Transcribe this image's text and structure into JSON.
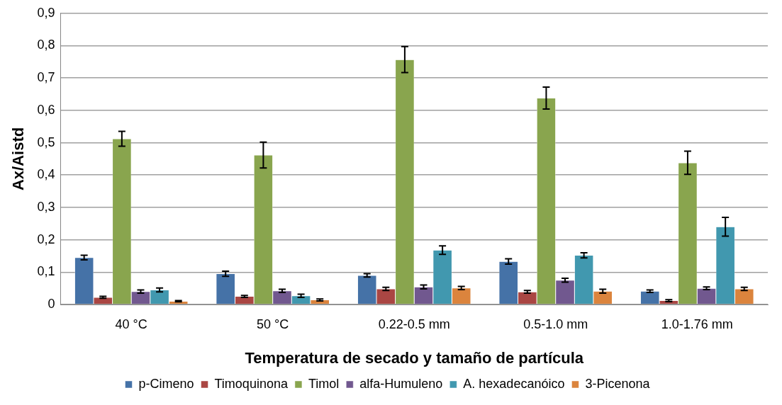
{
  "chart_data": {
    "type": "bar",
    "xlabel": "Temperatura de secado y tamaño de partícula",
    "ylabel": "Ax/Aistd",
    "categories": [
      "40 °C",
      "50 °C",
      "0.22-0.5 mm",
      "0.5-1.0 mm",
      "1.0-1.76 mm"
    ],
    "series": [
      {
        "name": "p-Cimeno",
        "color": "#4572a7",
        "values": [
          0.145,
          0.095,
          0.09,
          0.133,
          0.041
        ],
        "errors": [
          0.007,
          0.008,
          0.005,
          0.008,
          0.004
        ]
      },
      {
        "name": "Timoquinona",
        "color": "#aa4643",
        "values": [
          0.022,
          0.025,
          0.048,
          0.039,
          0.012
        ],
        "errors": [
          0.003,
          0.003,
          0.005,
          0.004,
          0.003
        ]
      },
      {
        "name": "Timol",
        "color": "#89a54e",
        "values": [
          0.512,
          0.462,
          0.757,
          0.638,
          0.438
        ],
        "errors": [
          0.023,
          0.04,
          0.04,
          0.034,
          0.036
        ]
      },
      {
        "name": "alfa-Humuleno",
        "color": "#71588f",
        "values": [
          0.04,
          0.042,
          0.054,
          0.075,
          0.05
        ],
        "errors": [
          0.005,
          0.005,
          0.006,
          0.006,
          0.004
        ]
      },
      {
        "name": "A. hexadecanóico",
        "color": "#4198af",
        "values": [
          0.045,
          0.027,
          0.168,
          0.152,
          0.24
        ],
        "errors": [
          0.006,
          0.005,
          0.013,
          0.008,
          0.029
        ]
      },
      {
        "name": "3-Picenona",
        "color": "#db843d",
        "values": [
          0.01,
          0.014,
          0.051,
          0.041,
          0.048
        ],
        "errors": [
          0.002,
          0.003,
          0.005,
          0.006,
          0.005
        ]
      }
    ],
    "ylim": [
      0,
      0.9
    ],
    "yticks": [
      0,
      {
        "value": 0.1,
        "label": "0,1"
      },
      {
        "value": 0.2,
        "label": "0,2"
      },
      {
        "value": 0.3,
        "label": "0,3"
      },
      {
        "value": 0.4,
        "label": "0,4"
      },
      {
        "value": 0.5,
        "label": "0,5"
      },
      {
        "value": 0.6,
        "label": "0,6"
      },
      {
        "value": 0.7,
        "label": "0,7"
      },
      {
        "value": 0.8,
        "label": "0,8"
      },
      {
        "value": 0.9,
        "label": "0,9"
      }
    ],
    "grid": "y",
    "legend": "bottom"
  }
}
